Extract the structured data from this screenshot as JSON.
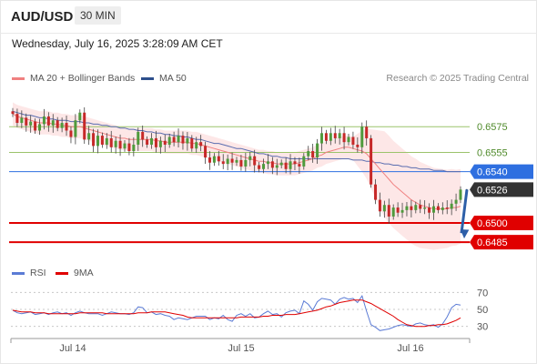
{
  "header": {
    "symbol": "AUD/USD",
    "timeframe": "30 MIN"
  },
  "datetime": "Wednesday, July 16, 2025 3:28:09 AM CET",
  "legend": {
    "ma20_label": "MA 20 + Bollinger Bands",
    "ma50_label": "MA 50",
    "credit": "Research © 2025 Trading Central"
  },
  "rsi_legend": {
    "rsi_label": "RSI",
    "ma_label": "9MA"
  },
  "colors": {
    "ma20": "#f08080",
    "ma50": "#5a6db0",
    "bollinger_fill": "#fde4e4",
    "candle_up": "#4f9a3c",
    "candle_down": "#c62828",
    "resistance": "#9bc36b",
    "support": "#e00000",
    "pivot": "#2e6fe0",
    "current": "#333333",
    "arrow": "#2d5fa8",
    "rsi": "#5b7bd5",
    "rsi_ma": "#e00000"
  },
  "chart_data": [
    {
      "type": "candlestick",
      "title": "AUD/USD",
      "x_labels": [
        "Jul 14",
        "Jul 15",
        "Jul 16"
      ],
      "ylim": [
        0.6478,
        0.66
      ],
      "levels": [
        {
          "value": 0.6575,
          "label": "0.6575",
          "kind": "resistance"
        },
        {
          "value": 0.6555,
          "label": "0.6555",
          "kind": "resistance"
        },
        {
          "value": 0.654,
          "label": "0.6540",
          "kind": "pivot"
        },
        {
          "value": 0.6526,
          "label": "0.6526",
          "kind": "current"
        },
        {
          "value": 0.65,
          "label": "0.6500",
          "kind": "support"
        },
        {
          "value": 0.6485,
          "label": "0.6485",
          "kind": "support"
        }
      ],
      "closes": [
        0.6585,
        0.6578,
        0.6582,
        0.6576,
        0.6579,
        0.6572,
        0.6577,
        0.6583,
        0.6576,
        0.658,
        0.6574,
        0.6578,
        0.6572,
        0.6567,
        0.658,
        0.6586,
        0.6565,
        0.657,
        0.656,
        0.6568,
        0.6561,
        0.6566,
        0.6559,
        0.6564,
        0.6558,
        0.6562,
        0.6556,
        0.6561,
        0.6571,
        0.6565,
        0.6561,
        0.6566,
        0.6559,
        0.6564,
        0.6561,
        0.6567,
        0.6563,
        0.6568,
        0.6562,
        0.6566,
        0.6558,
        0.6563,
        0.656,
        0.6551,
        0.6547,
        0.6552,
        0.6548,
        0.6546,
        0.655,
        0.6547,
        0.6549,
        0.6544,
        0.6549,
        0.6552,
        0.6545,
        0.6542,
        0.6546,
        0.6548,
        0.6543,
        0.6545,
        0.6547,
        0.6542,
        0.6548,
        0.6546,
        0.6544,
        0.6552,
        0.6556,
        0.6551,
        0.6562,
        0.657,
        0.6564,
        0.657,
        0.6566,
        0.657,
        0.6563,
        0.6567,
        0.6561,
        0.6559,
        0.6575,
        0.6566,
        0.653,
        0.6518,
        0.6509,
        0.6514,
        0.6505,
        0.6512,
        0.6508,
        0.651,
        0.6513,
        0.651,
        0.6514,
        0.6511,
        0.6512,
        0.6508,
        0.6513,
        0.651,
        0.6512,
        0.6511,
        0.6515,
        0.6518,
        0.6526
      ],
      "ma20": [
        0.6585,
        0.6583,
        0.6582,
        0.6581,
        0.658,
        0.6579,
        0.6578,
        0.6578,
        0.6578,
        0.6577,
        0.6577,
        0.6576,
        0.6576,
        0.6575,
        0.6575,
        0.6575,
        0.6574,
        0.6573,
        0.6572,
        0.6571,
        0.657,
        0.6569,
        0.6568,
        0.6567,
        0.6566,
        0.6566,
        0.6565,
        0.6565,
        0.6565,
        0.6565,
        0.6565,
        0.6565,
        0.6564,
        0.6564,
        0.6563,
        0.6563,
        0.6563,
        0.6563,
        0.6563,
        0.6563,
        0.6562,
        0.6562,
        0.6561,
        0.656,
        0.6559,
        0.6558,
        0.6557,
        0.6556,
        0.6555,
        0.6554,
        0.6553,
        0.6552,
        0.6551,
        0.655,
        0.6549,
        0.6548,
        0.6548,
        0.6547,
        0.6547,
        0.6546,
        0.6546,
        0.6546,
        0.6546,
        0.6546,
        0.6547,
        0.6548,
        0.6549,
        0.655,
        0.6552,
        0.6553,
        0.6555,
        0.6556,
        0.6557,
        0.6558,
        0.6559,
        0.6559,
        0.6558,
        0.6557,
        0.6556,
        0.6554,
        0.655,
        0.6546,
        0.6542,
        0.6538,
        0.6534,
        0.653,
        0.6527,
        0.6524,
        0.6521,
        0.6518,
        0.6516,
        0.6514,
        0.6513,
        0.6512,
        0.6511,
        0.6511,
        0.6511,
        0.6511,
        0.6512,
        0.6512,
        0.6513
      ],
      "ma50": [
        0.6587,
        0.6586,
        0.6585,
        0.6584,
        0.6584,
        0.6583,
        0.6582,
        0.6582,
        0.6581,
        0.6581,
        0.658,
        0.658,
        0.658,
        0.6579,
        0.6579,
        0.6579,
        0.6578,
        0.6578,
        0.6577,
        0.6577,
        0.6576,
        0.6576,
        0.6575,
        0.6575,
        0.6574,
        0.6574,
        0.6573,
        0.6573,
        0.6572,
        0.6572,
        0.6571,
        0.6571,
        0.657,
        0.657,
        0.6569,
        0.6569,
        0.6568,
        0.6568,
        0.6567,
        0.6567,
        0.6566,
        0.6565,
        0.6565,
        0.6564,
        0.6563,
        0.6562,
        0.6562,
        0.6561,
        0.656,
        0.6559,
        0.6558,
        0.6558,
        0.6557,
        0.6556,
        0.6555,
        0.6554,
        0.6554,
        0.6553,
        0.6552,
        0.6552,
        0.6551,
        0.6551,
        0.655,
        0.655,
        0.655,
        0.655,
        0.655,
        0.655,
        0.655,
        0.655,
        0.655,
        0.655,
        0.655,
        0.655,
        0.655,
        0.655,
        0.6549,
        0.6549,
        0.6549,
        0.6548,
        0.6548,
        0.6547,
        0.6547,
        0.6546,
        0.6546,
        0.6545,
        0.6545,
        0.6544,
        0.6544,
        0.6543,
        0.6543,
        0.6542,
        0.6542,
        0.6542,
        0.6541,
        0.6541,
        0.6541,
        0.654,
        0.654,
        0.654,
        0.654
      ],
      "forecast": {
        "from": 0.6526,
        "to": 0.6485
      }
    },
    {
      "type": "line",
      "title": "RSI",
      "ylim": [
        20,
        80
      ],
      "y_ticks": [
        "70",
        "50",
        "30"
      ],
      "series": [
        {
          "name": "RSI",
          "values": [
            49,
            46,
            45,
            46,
            47,
            44,
            45,
            46,
            44,
            46,
            47,
            45,
            46,
            43,
            46,
            48,
            46,
            45,
            45,
            45,
            43,
            45,
            47,
            46,
            45,
            45,
            44,
            46,
            53,
            52,
            46,
            47,
            44,
            45,
            43,
            42,
            38,
            40,
            39,
            38,
            40,
            42,
            42,
            42,
            38,
            40,
            39,
            43,
            38,
            36,
            43,
            45,
            42,
            45,
            40,
            41,
            45,
            48,
            44,
            45,
            41,
            46,
            48,
            49,
            45,
            60,
            56,
            49,
            59,
            63,
            62,
            61,
            56,
            62,
            64,
            62,
            63,
            58,
            66,
            48,
            32,
            29,
            25,
            26,
            27,
            29,
            31,
            32,
            31,
            30,
            33,
            34,
            32,
            31,
            32,
            29,
            33,
            41,
            52,
            56,
            55
          ]
        },
        {
          "name": "9MA",
          "values": [
            49,
            48,
            47,
            47,
            47,
            46,
            46,
            46,
            45,
            45,
            45,
            45,
            45,
            45,
            45,
            46,
            46,
            46,
            46,
            46,
            46,
            45,
            45,
            45,
            45,
            45,
            45,
            45,
            46,
            46,
            46,
            47,
            47,
            47,
            47,
            46,
            45,
            44,
            43,
            41,
            40,
            40,
            40,
            40,
            40,
            40,
            40,
            40,
            40,
            40,
            40,
            41,
            41,
            41,
            41,
            41,
            42,
            42,
            43,
            43,
            43,
            44,
            44,
            44,
            45,
            46,
            47,
            48,
            49,
            51,
            53,
            54,
            56,
            58,
            59,
            60,
            61,
            61,
            61,
            59,
            57,
            54,
            51,
            48,
            45,
            42,
            38,
            35,
            32,
            31,
            30,
            30,
            30,
            31,
            31,
            32,
            32,
            33,
            35,
            37,
            40
          ]
        }
      ],
      "x_labels": [
        "Jul 14",
        "Jul 15",
        "Jul 16"
      ]
    }
  ]
}
